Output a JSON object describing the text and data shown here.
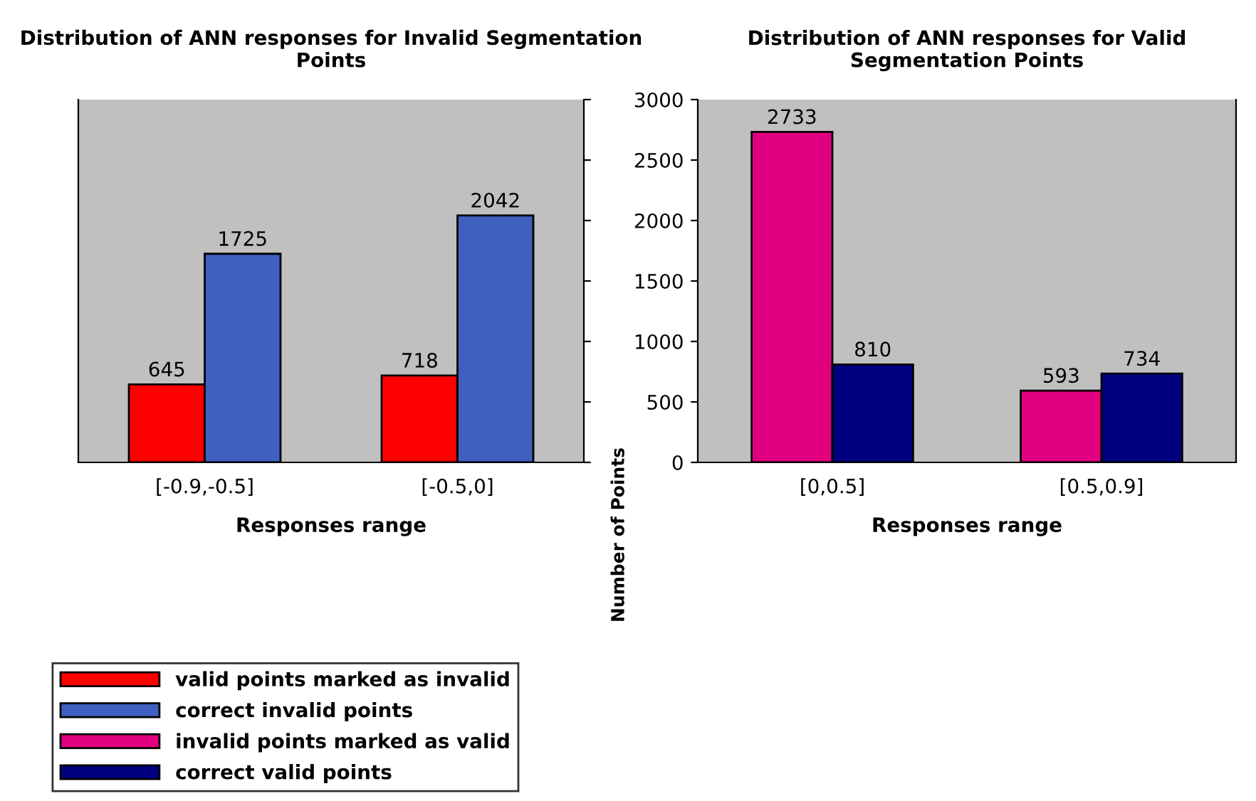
{
  "chart_data": [
    {
      "type": "bar",
      "title": "Distribution of ANN responses for Invalid Segmentation Points",
      "xlabel": "Responses range",
      "categories": [
        "[-0.9,-0.5]",
        "[-0.5,0]"
      ],
      "series": [
        {
          "name": "valid points marked as invalid",
          "color": "#ff0000",
          "values": [
            645,
            718
          ]
        },
        {
          "name": "correct invalid points",
          "color": "#4060c0",
          "values": [
            1725,
            2042
          ]
        }
      ],
      "ylim": [
        0,
        3000
      ],
      "yticks": [
        0,
        500,
        1000,
        1500,
        2000,
        2500,
        3000
      ],
      "tick_labels": "x",
      "data_labels": true,
      "legend": "bottom"
    },
    {
      "type": "bar",
      "title": "Distribution of ANN responses for Valid Segmentation Points",
      "xlabel": "Responses range",
      "ylabel": "Number of Points",
      "categories": [
        "[0,0.5]",
        "[0.5,0.9]"
      ],
      "series": [
        {
          "name": "invalid points marked as valid",
          "color": "#e0007f",
          "values": [
            2733,
            593
          ]
        },
        {
          "name": "correct valid points",
          "color": "#000080",
          "values": [
            810,
            734
          ]
        }
      ],
      "ylim": [
        0,
        3000
      ],
      "yticks": [
        0,
        500,
        1000,
        1500,
        2000,
        2500,
        3000
      ],
      "data_labels": true,
      "legend": "bottom"
    }
  ]
}
